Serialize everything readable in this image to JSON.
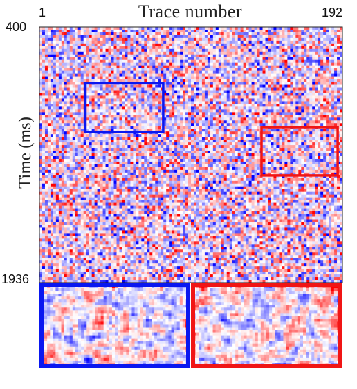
{
  "chart_data": {
    "type": "heatmap",
    "xlabel": "Trace number",
    "ylabel": "Time (ms)",
    "x_ticks": [
      "1",
      "192"
    ],
    "y_ticks": [
      "400",
      "1936"
    ],
    "xlim": [
      1,
      192
    ],
    "ylim": [
      400,
      1936
    ],
    "colormap": [
      "#0000ff",
      "#ffffff",
      "#ff0000"
    ],
    "highlight_boxes": [
      {
        "name": "blue",
        "color": "#0a17f0",
        "trace_range": [
          30,
          79
        ],
        "time_range": [
          738,
          1030
        ]
      },
      {
        "name": "red",
        "color": "#f01515",
        "trace_range": [
          141,
          189
        ],
        "time_range": [
          1002,
          1292
        ]
      }
    ],
    "zoom_panels": [
      {
        "name": "blue-zoom",
        "color": "#0a17f0"
      },
      {
        "name": "red-zoom",
        "color": "#f01515"
      }
    ]
  }
}
